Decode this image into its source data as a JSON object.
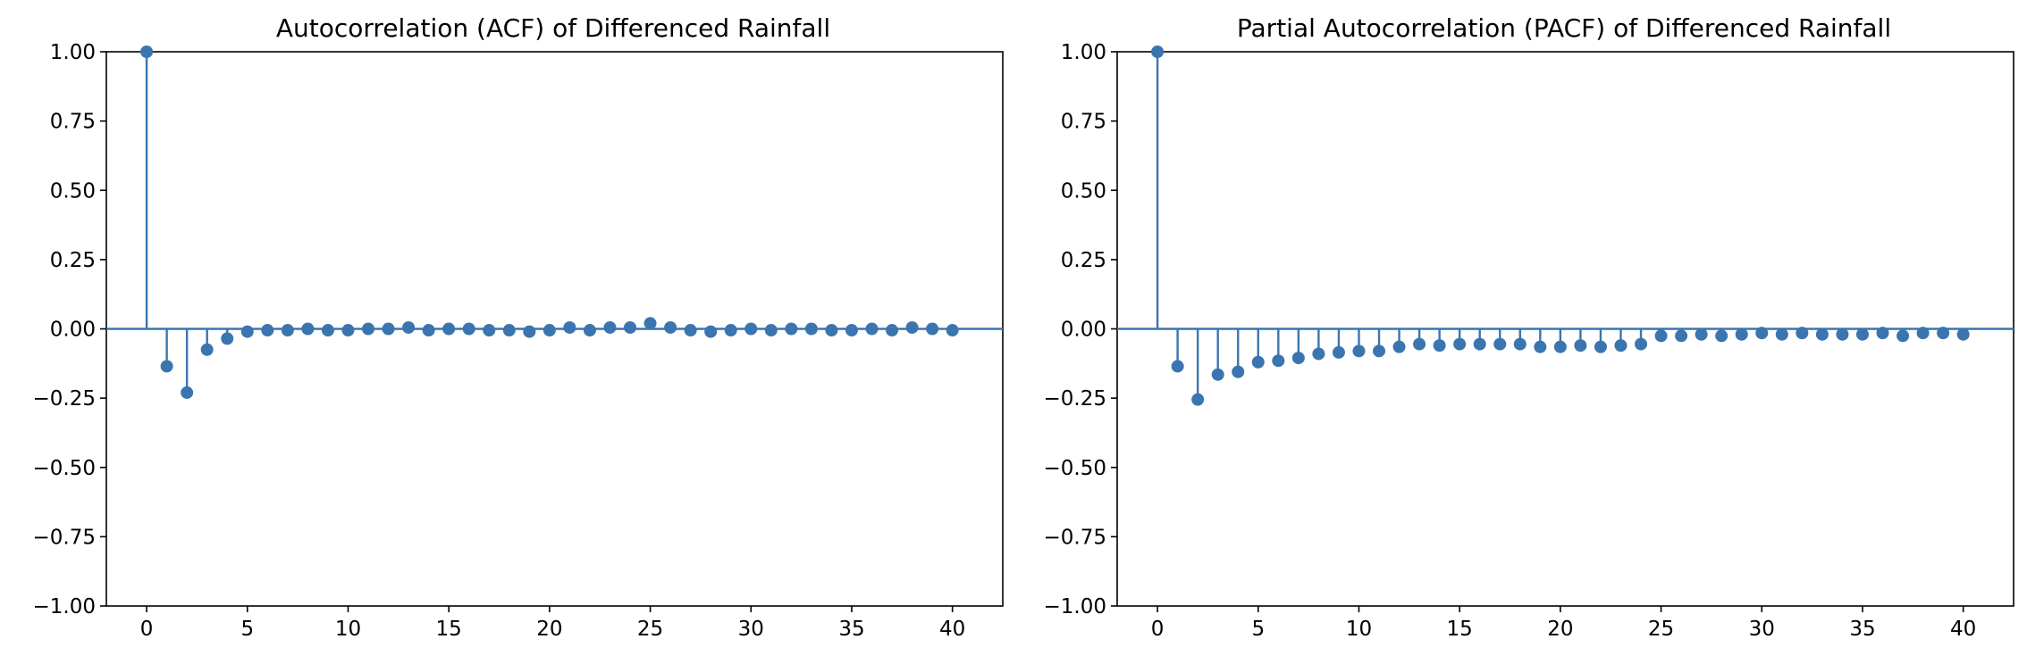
{
  "colors": {
    "stem": "#3b75af",
    "axis": "#000000",
    "background": "#ffffff"
  },
  "chart_data": [
    {
      "type": "stem",
      "title": "Autocorrelation (ACF) of Differenced Rainfall",
      "xlabel": "",
      "ylabel": "",
      "xlim": [
        -2,
        42.5
      ],
      "ylim": [
        -1.0,
        1.0
      ],
      "xticks": [
        0,
        5,
        10,
        15,
        20,
        25,
        30,
        35,
        40
      ],
      "xtick_labels": [
        "0",
        "5",
        "10",
        "15",
        "20",
        "25",
        "30",
        "35",
        "40"
      ],
      "yticks": [
        -1.0,
        -0.75,
        -0.5,
        -0.25,
        0.0,
        0.25,
        0.5,
        0.75,
        1.0
      ],
      "ytick_labels": [
        "−1.00",
        "−0.75",
        "−0.50",
        "−0.25",
        "0.00",
        "0.25",
        "0.50",
        "0.75",
        "1.00"
      ],
      "grid": false,
      "lags": [
        0,
        1,
        2,
        3,
        4,
        5,
        6,
        7,
        8,
        9,
        10,
        11,
        12,
        13,
        14,
        15,
        16,
        17,
        18,
        19,
        20,
        21,
        22,
        23,
        24,
        25,
        26,
        27,
        28,
        29,
        30,
        31,
        32,
        33,
        34,
        35,
        36,
        37,
        38,
        39,
        40
      ],
      "values": [
        1.0,
        -0.135,
        -0.23,
        -0.075,
        -0.035,
        -0.01,
        -0.005,
        -0.005,
        0.0,
        -0.005,
        -0.005,
        0.0,
        0.0,
        0.005,
        -0.005,
        0.0,
        0.0,
        -0.005,
        -0.005,
        -0.01,
        -0.005,
        0.005,
        -0.005,
        0.005,
        0.005,
        0.02,
        0.005,
        -0.005,
        -0.01,
        -0.005,
        0.0,
        -0.005,
        0.0,
        0.0,
        -0.005,
        -0.005,
        0.0,
        -0.005,
        0.005,
        0.0,
        -0.005
      ]
    },
    {
      "type": "stem",
      "title": "Partial Autocorrelation (PACF) of Differenced Rainfall",
      "xlabel": "",
      "ylabel": "",
      "xlim": [
        -2,
        42.5
      ],
      "ylim": [
        -1.0,
        1.0
      ],
      "xticks": [
        0,
        5,
        10,
        15,
        20,
        25,
        30,
        35,
        40
      ],
      "xtick_labels": [
        "0",
        "5",
        "10",
        "15",
        "20",
        "25",
        "30",
        "35",
        "40"
      ],
      "yticks": [
        -1.0,
        -0.75,
        -0.5,
        -0.25,
        0.0,
        0.25,
        0.5,
        0.75,
        1.0
      ],
      "ytick_labels": [
        "−1.00",
        "−0.75",
        "−0.50",
        "−0.25",
        "0.00",
        "0.25",
        "0.50",
        "0.75",
        "1.00"
      ],
      "grid": false,
      "lags": [
        0,
        1,
        2,
        3,
        4,
        5,
        6,
        7,
        8,
        9,
        10,
        11,
        12,
        13,
        14,
        15,
        16,
        17,
        18,
        19,
        20,
        21,
        22,
        23,
        24,
        25,
        26,
        27,
        28,
        29,
        30,
        31,
        32,
        33,
        34,
        35,
        36,
        37,
        38,
        39,
        40
      ],
      "values": [
        1.0,
        -0.135,
        -0.255,
        -0.165,
        -0.155,
        -0.12,
        -0.115,
        -0.105,
        -0.09,
        -0.085,
        -0.08,
        -0.08,
        -0.065,
        -0.055,
        -0.06,
        -0.055,
        -0.055,
        -0.055,
        -0.055,
        -0.065,
        -0.065,
        -0.06,
        -0.065,
        -0.06,
        -0.055,
        -0.025,
        -0.025,
        -0.02,
        -0.025,
        -0.02,
        -0.015,
        -0.02,
        -0.015,
        -0.02,
        -0.02,
        -0.02,
        -0.015,
        -0.025,
        -0.015,
        -0.015,
        -0.02
      ]
    }
  ]
}
